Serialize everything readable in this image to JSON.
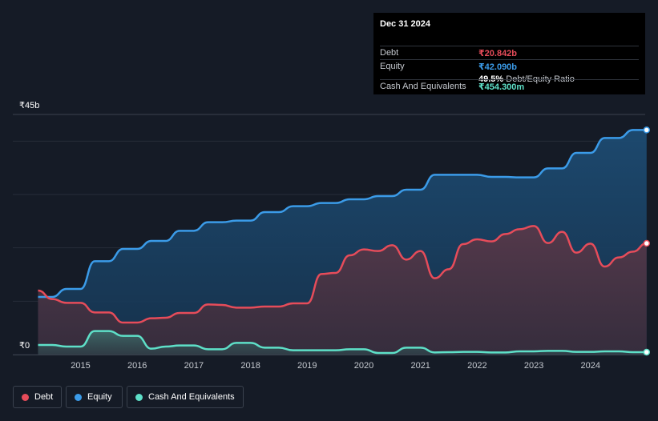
{
  "tooltip": {
    "date": "Dec 31 2024",
    "rows": [
      {
        "label": "Debt",
        "value": "₹20.842b",
        "color": "#e64c5a"
      },
      {
        "label": "Equity",
        "value": "₹42.090b",
        "color": "#3b9be8"
      },
      {
        "label": "",
        "value": "49.5%",
        "suffix": "Debt/Equity Ratio",
        "color": "#ffffff"
      },
      {
        "label": "Cash And Equivalents",
        "value": "₹454.300m",
        "color": "#5ee0c8"
      }
    ]
  },
  "y_axis": {
    "top_label": "₹45b",
    "bottom_label": "₹0"
  },
  "legend": [
    {
      "label": "Debt",
      "color": "#e64c5a"
    },
    {
      "label": "Equity",
      "color": "#3b9be8"
    },
    {
      "label": "Cash And Equivalents",
      "color": "#5ee0c8"
    }
  ],
  "chart_data": {
    "type": "area",
    "ylim": [
      0,
      45
    ],
    "y_unit": "₹ billions",
    "x_ticks": [
      "2015",
      "2016",
      "2017",
      "2018",
      "2019",
      "2020",
      "2021",
      "2022",
      "2023",
      "2024"
    ],
    "grid": true,
    "legend_position": "bottom-left",
    "series": [
      {
        "name": "Equity",
        "color": "#3b9be8",
        "points": [
          [
            2014.25,
            10.8
          ],
          [
            2014.5,
            10.8
          ],
          [
            2014.75,
            12.3
          ],
          [
            2015.0,
            12.3
          ],
          [
            2015.25,
            17.5
          ],
          [
            2015.5,
            17.5
          ],
          [
            2015.75,
            19.8
          ],
          [
            2016.0,
            19.8
          ],
          [
            2016.25,
            21.3
          ],
          [
            2016.5,
            21.3
          ],
          [
            2016.75,
            23.2
          ],
          [
            2017.0,
            23.2
          ],
          [
            2017.25,
            24.8
          ],
          [
            2017.5,
            24.8
          ],
          [
            2017.75,
            25.1
          ],
          [
            2018.0,
            25.1
          ],
          [
            2018.25,
            26.7
          ],
          [
            2018.5,
            26.7
          ],
          [
            2018.75,
            27.8
          ],
          [
            2019.0,
            27.8
          ],
          [
            2019.25,
            28.4
          ],
          [
            2019.5,
            28.4
          ],
          [
            2019.75,
            29.1
          ],
          [
            2020.0,
            29.1
          ],
          [
            2020.25,
            29.7
          ],
          [
            2020.5,
            29.7
          ],
          [
            2020.75,
            30.9
          ],
          [
            2021.0,
            30.9
          ],
          [
            2021.25,
            33.7
          ],
          [
            2021.5,
            33.7
          ],
          [
            2021.75,
            33.7
          ],
          [
            2022.0,
            33.7
          ],
          [
            2022.25,
            33.3
          ],
          [
            2022.5,
            33.3
          ],
          [
            2022.75,
            33.2
          ],
          [
            2023.0,
            33.2
          ],
          [
            2023.25,
            34.9
          ],
          [
            2023.5,
            34.9
          ],
          [
            2023.75,
            37.8
          ],
          [
            2024.0,
            37.8
          ],
          [
            2024.25,
            40.6
          ],
          [
            2024.5,
            40.6
          ],
          [
            2024.75,
            42.09
          ],
          [
            2024.99,
            42.09
          ]
        ]
      },
      {
        "name": "Debt",
        "color": "#e64c5a",
        "points": [
          [
            2014.25,
            12.0
          ],
          [
            2014.5,
            10.4
          ],
          [
            2014.75,
            9.7
          ],
          [
            2015.0,
            9.7
          ],
          [
            2015.25,
            7.9
          ],
          [
            2015.5,
            7.9
          ],
          [
            2015.75,
            6.0
          ],
          [
            2016.0,
            6.0
          ],
          [
            2016.25,
            6.8
          ],
          [
            2016.5,
            6.9
          ],
          [
            2016.75,
            7.8
          ],
          [
            2017.0,
            7.8
          ],
          [
            2017.25,
            9.4
          ],
          [
            2017.5,
            9.3
          ],
          [
            2017.75,
            8.8
          ],
          [
            2018.0,
            8.8
          ],
          [
            2018.25,
            9.0
          ],
          [
            2018.5,
            9.0
          ],
          [
            2018.75,
            9.6
          ],
          [
            2019.0,
            9.6
          ],
          [
            2019.25,
            15.1
          ],
          [
            2019.5,
            15.3
          ],
          [
            2019.75,
            18.6
          ],
          [
            2020.0,
            19.7
          ],
          [
            2020.25,
            19.4
          ],
          [
            2020.5,
            20.5
          ],
          [
            2020.75,
            17.8
          ],
          [
            2021.0,
            19.4
          ],
          [
            2021.25,
            14.3
          ],
          [
            2021.5,
            16.0
          ],
          [
            2021.75,
            20.7
          ],
          [
            2022.0,
            21.6
          ],
          [
            2022.25,
            21.2
          ],
          [
            2022.5,
            22.6
          ],
          [
            2022.75,
            23.5
          ],
          [
            2023.0,
            24.1
          ],
          [
            2023.25,
            20.9
          ],
          [
            2023.5,
            23.0
          ],
          [
            2023.75,
            19.1
          ],
          [
            2024.0,
            20.8
          ],
          [
            2024.25,
            16.5
          ],
          [
            2024.5,
            18.2
          ],
          [
            2024.75,
            19.3
          ],
          [
            2024.99,
            20.842
          ]
        ]
      },
      {
        "name": "Cash And Equivalents",
        "color": "#5ee0c8",
        "points": [
          [
            2014.25,
            1.8
          ],
          [
            2014.5,
            1.8
          ],
          [
            2014.75,
            1.5
          ],
          [
            2015.0,
            1.5
          ],
          [
            2015.25,
            4.4
          ],
          [
            2015.5,
            4.4
          ],
          [
            2015.75,
            3.5
          ],
          [
            2016.0,
            3.5
          ],
          [
            2016.25,
            1.1
          ],
          [
            2016.5,
            1.5
          ],
          [
            2016.75,
            1.7
          ],
          [
            2017.0,
            1.7
          ],
          [
            2017.25,
            1.0
          ],
          [
            2017.5,
            1.0
          ],
          [
            2017.75,
            2.2
          ],
          [
            2018.0,
            2.2
          ],
          [
            2018.25,
            1.3
          ],
          [
            2018.5,
            1.3
          ],
          [
            2018.75,
            0.8
          ],
          [
            2019.0,
            0.8
          ],
          [
            2019.25,
            0.8
          ],
          [
            2019.5,
            0.8
          ],
          [
            2019.75,
            1.0
          ],
          [
            2020.0,
            1.0
          ],
          [
            2020.25,
            0.3
          ],
          [
            2020.5,
            0.3
          ],
          [
            2020.75,
            1.3
          ],
          [
            2021.0,
            1.3
          ],
          [
            2021.25,
            0.4
          ],
          [
            2021.5,
            0.45
          ],
          [
            2021.75,
            0.5
          ],
          [
            2022.0,
            0.5
          ],
          [
            2022.25,
            0.4
          ],
          [
            2022.5,
            0.4
          ],
          [
            2022.75,
            0.6
          ],
          [
            2023.0,
            0.6
          ],
          [
            2023.25,
            0.7
          ],
          [
            2023.5,
            0.7
          ],
          [
            2023.75,
            0.5
          ],
          [
            2024.0,
            0.5
          ],
          [
            2024.25,
            0.6
          ],
          [
            2024.5,
            0.6
          ],
          [
            2024.75,
            0.454
          ],
          [
            2024.99,
            0.454
          ]
        ]
      }
    ]
  }
}
